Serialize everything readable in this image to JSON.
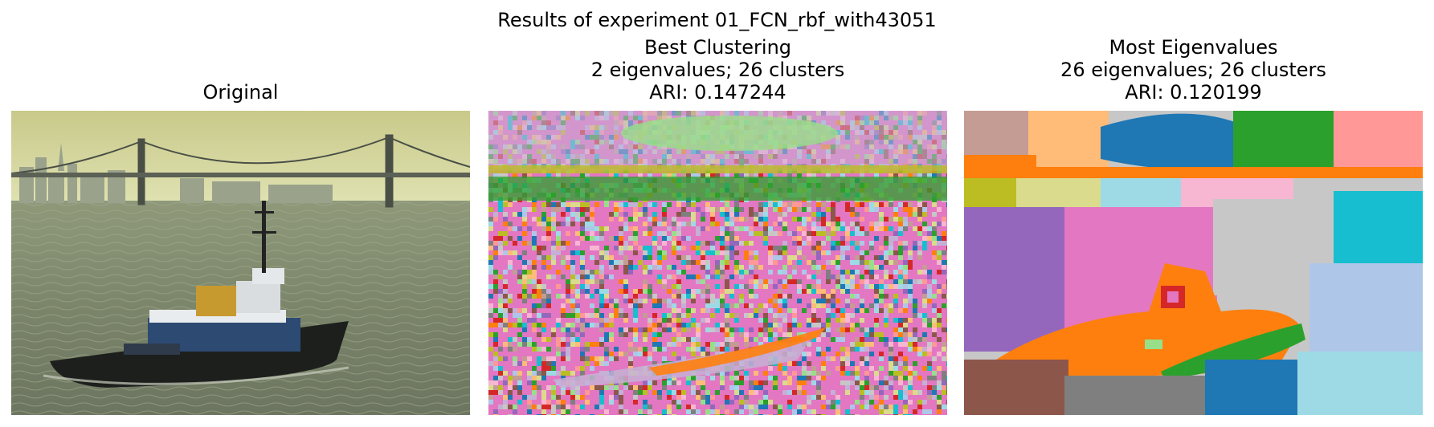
{
  "figure": {
    "suptitle": "Results of experiment 01_FCN_rbf_with43051"
  },
  "panels": [
    {
      "title_lines": [
        "Original"
      ],
      "image": "photo of a tugboat on the bay with a suspension bridge and city skyline in the background"
    },
    {
      "title_lines": [
        "Best Clustering",
        "2 eigenvalues; 26 clusters",
        "ARI: 0.147244"
      ],
      "eigenvalues": 2,
      "clusters": 26,
      "ari": 0.147244,
      "image": "noisy per-pixel cluster label map"
    },
    {
      "title_lines": [
        "Most Eigenvalues",
        "26 eigenvalues; 26 clusters",
        "ARI: 0.120199"
      ],
      "eigenvalues": 26,
      "clusters": 26,
      "ari": 0.120199,
      "image": "smooth region-based cluster label map"
    }
  ],
  "colors": {
    "tab_palette": [
      "#1f77b4",
      "#ff7f0e",
      "#2ca02c",
      "#d62728",
      "#9467bd",
      "#8c564b",
      "#e377c2",
      "#7f7f7f",
      "#bcbd22",
      "#17becf",
      "#aec7e8",
      "#ffbb78",
      "#98df8a",
      "#ff9896",
      "#c5b0d5",
      "#c49c94",
      "#f7b6d2",
      "#c7c7c7",
      "#dbdb8d",
      "#9edae5"
    ]
  }
}
